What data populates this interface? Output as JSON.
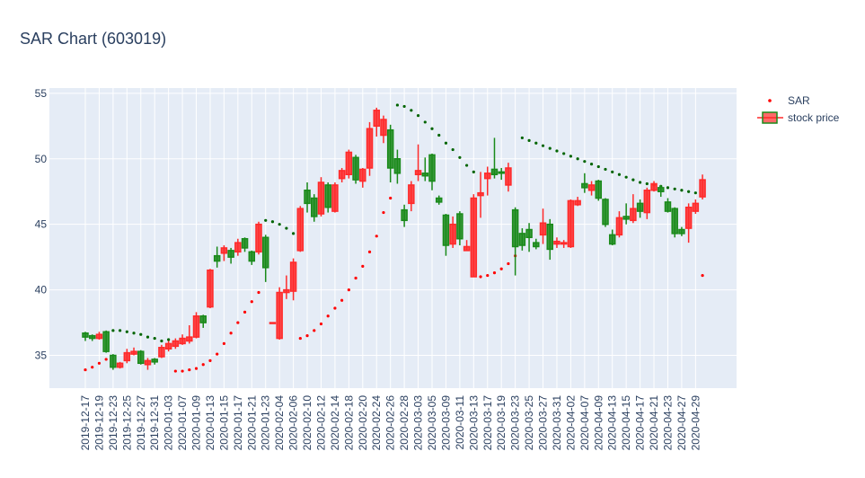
{
  "chart_data": {
    "type": "candlestick",
    "title": "SAR Chart (603019)",
    "categories": [
      "2019-12-17",
      null,
      "2019-12-19",
      null,
      "2019-12-23",
      null,
      "2019-12-25",
      null,
      "2019-12-27",
      null,
      "2019-12-31",
      null,
      "2020-01-03",
      null,
      "2020-01-07",
      null,
      "2020-01-09",
      null,
      "2020-01-13",
      null,
      "2020-01-15",
      null,
      "2020-01-17",
      null,
      "2020-01-21",
      null,
      "2020-01-23",
      null,
      "2020-02-04",
      null,
      "2020-02-06",
      null,
      "2020-02-10",
      null,
      "2020-02-12",
      null,
      "2020-02-14",
      null,
      "2020-02-18",
      null,
      "2020-02-20",
      null,
      "2020-02-24",
      null,
      "2020-02-26",
      null,
      "2020-02-28",
      null,
      "2020-03-03",
      null,
      "2020-03-05",
      null,
      "2020-03-09",
      null,
      "2020-03-11",
      null,
      "2020-03-13",
      null,
      "2020-03-17",
      null,
      "2020-03-19",
      null,
      "2020-03-23",
      null,
      "2020-03-25",
      null,
      "2020-03-27",
      null,
      "2020-03-31",
      null,
      "2020-04-02",
      null,
      "2020-04-07",
      null,
      "2020-04-09",
      null,
      "2020-04-13",
      null,
      "2020-04-15",
      null,
      "2020-04-17",
      null,
      "2020-04-21",
      null,
      "2020-04-23",
      null,
      "2020-04-27",
      null,
      "2020-04-29",
      null
    ],
    "series": [
      {
        "name": "SAR",
        "type": "scatter",
        "color": "#ff0000",
        "above_color": "#006400",
        "values": [
          33.9,
          34.1,
          34.4,
          34.7,
          36.9,
          36.9,
          36.8,
          36.7,
          36.6,
          36.4,
          36.3,
          36.1,
          36.2,
          33.8,
          33.8,
          33.9,
          34.0,
          34.3,
          34.6,
          35.1,
          35.9,
          36.7,
          37.5,
          38.3,
          39.1,
          39.8,
          45.3,
          45.2,
          45.0,
          44.7,
          44.3,
          36.3,
          36.5,
          36.9,
          37.4,
          38.0,
          38.6,
          39.2,
          40.0,
          40.9,
          41.8,
          42.9,
          44.1,
          45.9,
          47.0,
          54.1,
          54.0,
          53.7,
          53.3,
          52.8,
          52.3,
          51.8,
          51.2,
          50.7,
          50.1,
          49.5,
          49.0,
          41.0,
          41.1,
          41.3,
          41.6,
          42.0,
          42.6,
          51.6,
          51.4,
          51.2,
          51.0,
          50.8,
          50.6,
          50.4,
          50.2,
          50.0,
          49.8,
          49.6,
          49.4,
          49.2,
          49.0,
          48.8,
          48.6,
          48.4,
          48.2,
          48.1,
          48.0,
          47.9,
          47.8,
          47.7,
          47.6,
          47.5,
          47.4,
          41.1
        ]
      },
      {
        "name": "stock price",
        "type": "candlestick",
        "increasing_color": "#ff2a2a",
        "decreasing_color": "#1a8a1a",
        "open": [
          36.7,
          36.5,
          36.3,
          36.8,
          35.0,
          34.1,
          34.6,
          35.1,
          35.3,
          34.3,
          34.7,
          34.9,
          35.5,
          35.7,
          35.9,
          36.1,
          36.4,
          38.0,
          38.7,
          42.6,
          42.8,
          43.0,
          42.9,
          43.9,
          42.9,
          42.9,
          44.0,
          37.5,
          36.3,
          39.8,
          39.9,
          43.0,
          47.6,
          47.0,
          45.8,
          48.0,
          46.0,
          48.5,
          48.8,
          50.1,
          48.3,
          49.3,
          52.5,
          51.8,
          52.2,
          50.0,
          46.1,
          46.6,
          48.8,
          48.9,
          50.3,
          47.0,
          45.7,
          43.5,
          45.8,
          43.0,
          41.0,
          47.2,
          48.5,
          49.2,
          49.0,
          48.0,
          46.1,
          44.3,
          44.6,
          43.6,
          44.2,
          45.0,
          43.5,
          43.5,
          43.3,
          46.5,
          48.1,
          47.6,
          48.3,
          46.9,
          44.2,
          44.2,
          45.6,
          45.3,
          46.6,
          45.9,
          47.6,
          47.8,
          46.7,
          46.2,
          44.6,
          44.7,
          46.0,
          47.1
        ],
        "high": [
          36.8,
          36.6,
          36.8,
          36.9,
          35.1,
          34.5,
          35.5,
          35.6,
          35.4,
          34.8,
          34.8,
          35.8,
          36.1,
          36.3,
          36.6,
          37.3,
          38.3,
          38.1,
          41.6,
          43.3,
          43.4,
          43.2,
          43.9,
          44.0,
          43.0,
          45.2,
          44.2,
          37.5,
          40.2,
          41.1,
          42.4,
          46.4,
          48.2,
          47.3,
          48.6,
          48.2,
          48.2,
          49.3,
          50.7,
          50.3,
          49.3,
          52.8,
          53.9,
          53.3,
          52.6,
          50.7,
          46.5,
          48.3,
          51.1,
          50.1,
          50.4,
          47.2,
          45.8,
          45.6,
          46.0,
          43.8,
          47.3,
          49.0,
          49.4,
          51.6,
          49.3,
          49.7,
          46.3,
          44.7,
          45.1,
          43.9,
          46.2,
          45.4,
          44.0,
          43.8,
          46.9,
          47.1,
          48.9,
          48.3,
          48.4,
          47.0,
          44.6,
          46.0,
          46.6,
          47.3,
          46.9,
          47.8,
          48.3,
          48.0,
          47.0,
          46.3,
          44.8,
          46.6,
          46.9,
          48.8
        ],
        "low": [
          36.1,
          36.1,
          36.2,
          35.2,
          33.9,
          34.0,
          34.4,
          35.0,
          34.3,
          33.9,
          34.3,
          34.8,
          35.3,
          35.5,
          35.8,
          35.9,
          36.3,
          37.1,
          38.6,
          41.7,
          42.2,
          42.0,
          42.6,
          42.9,
          41.9,
          42.7,
          40.6,
          37.5,
          36.2,
          39.3,
          39.2,
          42.9,
          45.9,
          45.2,
          45.6,
          45.9,
          45.9,
          48.2,
          48.5,
          48.1,
          47.8,
          48.7,
          51.7,
          51.2,
          48.2,
          48.1,
          44.8,
          46.0,
          48.3,
          48.3,
          47.6,
          46.5,
          42.6,
          43.2,
          43.4,
          43.0,
          41.0,
          45.5,
          47.2,
          48.5,
          48.4,
          47.5,
          41.1,
          43.0,
          42.9,
          43.1,
          43.5,
          42.3,
          43.2,
          43.2,
          43.2,
          46.4,
          47.4,
          47.2,
          46.8,
          44.8,
          43.4,
          44.0,
          45.0,
          45.1,
          45.5,
          45.4,
          47.5,
          47.1,
          45.9,
          44.0,
          44.1,
          43.6,
          45.8,
          46.9
        ],
        "close": [
          36.4,
          36.3,
          36.6,
          35.3,
          34.1,
          34.4,
          35.2,
          35.3,
          34.4,
          34.6,
          34.5,
          35.6,
          35.9,
          36.1,
          36.3,
          36.4,
          38.0,
          37.5,
          41.5,
          42.2,
          43.2,
          42.5,
          43.6,
          43.2,
          42.2,
          45.0,
          41.7,
          37.5,
          39.8,
          40.0,
          42.1,
          46.2,
          46.6,
          45.6,
          48.2,
          46.3,
          48.0,
          49.1,
          50.5,
          48.4,
          49.2,
          52.3,
          53.7,
          53.0,
          49.3,
          48.9,
          45.3,
          48.0,
          49.1,
          48.7,
          48.3,
          46.7,
          43.4,
          45.0,
          43.9,
          43.3,
          47.0,
          47.4,
          48.9,
          48.8,
          48.9,
          49.3,
          43.3,
          43.4,
          44.0,
          43.3,
          45.1,
          43.1,
          43.7,
          43.6,
          46.8,
          46.8,
          47.8,
          48.0,
          47.0,
          45.0,
          43.5,
          45.5,
          45.4,
          46.2,
          46.0,
          47.6,
          48.1,
          47.5,
          46.0,
          44.3,
          44.3,
          46.3,
          46.6,
          48.4
        ]
      }
    ],
    "ylim": [
      32.5,
      55.4
    ],
    "yticks": [
      35,
      40,
      45,
      50,
      55
    ],
    "grid": true
  }
}
